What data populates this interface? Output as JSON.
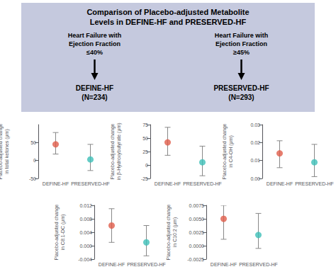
{
  "chart_data": [
    {
      "type": "diagram",
      "title": "Comparison of Placebo-adjusted Metabolite\nLevels in DEFINE-HF and PRESERVED-HF",
      "annotations": [
        "Heart Failure with\nEjection Fraction\n≤40%",
        "Heart Failure with\nEjection Fraction\n≥45%",
        "DEFINE-HF\n(N=234)",
        "PRESERVED-HF\n(N=293)"
      ],
      "color": "#c5c9de"
    },
    {
      "type": "scatter",
      "ylabel": "Placebo-adjusted change\nin total ketones (μm)",
      "categories": [
        "DEFINE-HF",
        "PRESERVED-HF"
      ],
      "values": [
        45,
        3
      ],
      "lower": [
        18,
        -28
      ],
      "upper": [
        78,
        45
      ],
      "colors": [
        "#e05c4a",
        "#3dbfb8"
      ],
      "marker": "circle",
      "ylim": [
        -50,
        100
      ],
      "yticks": [
        -50,
        0,
        50
      ],
      "grid": false
    },
    {
      "type": "scatter",
      "ylabel": "Placebo-adjusted change\nin β-Hydroxybutyrate (μm)",
      "categories": [
        "DEFINE-HF",
        "PRESERVED-HF"
      ],
      "values": [
        42,
        5
      ],
      "lower": [
        18,
        -20
      ],
      "upper": [
        70,
        35
      ],
      "colors": [
        "#e05c4a",
        "#3dbfb8"
      ],
      "marker": "circle",
      "ylim": [
        -25,
        75
      ],
      "yticks": [
        -25,
        0,
        25,
        50,
        75
      ],
      "grid": false
    },
    {
      "type": "scatter",
      "ylabel": "Placebo-adjusted change\nin C4-OH (μm)",
      "categories": [
        "DEFINE-HF",
        "PRESERVED-HF"
      ],
      "values": [
        0.014,
        0.009
      ],
      "lower": [
        0.006,
        0.001
      ],
      "upper": [
        0.021,
        0.019
      ],
      "colors": [
        "#e05c4a",
        "#3dbfb8"
      ],
      "marker": "circle",
      "ylim": [
        0,
        0.03
      ],
      "yticks": [
        {
          "value": 0,
          "label": "0.00"
        },
        0.01,
        0.02,
        0.03
      ],
      "grid": false
    },
    {
      "type": "scatter",
      "ylabel": "Placebo-adjusted change\nin C8:1-DC (μm)",
      "categories": [
        "DEFINE-HF",
        "PRESERVED-HF"
      ],
      "values": [
        0.006,
        0.001
      ],
      "lower": [
        0.001,
        -0.003
      ],
      "upper": [
        0.011,
        0.006
      ],
      "colors": [
        "#e05c4a",
        "#3dbfb8"
      ],
      "marker": "circle",
      "ylim": [
        -0.004,
        0.012
      ],
      "yticks": [
        -0.004,
        {
          "value": 0,
          "label": "0.000"
        },
        0.004,
        0.008,
        0.012
      ],
      "grid": false
    },
    {
      "type": "scatter",
      "ylabel": "Placebo-adjusted change\nin C10:2 (μm)",
      "categories": [
        "DEFINE-HF",
        "PRESERVED-HF"
      ],
      "values": [
        0.005,
        0.002
      ],
      "lower": [
        0.0012,
        -0.0005
      ],
      "upper": [
        0.0075,
        0.006
      ],
      "colors": [
        "#e05c4a",
        "#3dbfb8"
      ],
      "marker": "circle",
      "ylim": [
        -0.0025,
        0.0075
      ],
      "yticks": [
        -0.0025,
        {
          "value": 0,
          "label": "0.0000"
        },
        0.0025,
        {
          "value": 0.005,
          "label": "0.0050"
        },
        0.0075
      ],
      "grid": false
    }
  ]
}
